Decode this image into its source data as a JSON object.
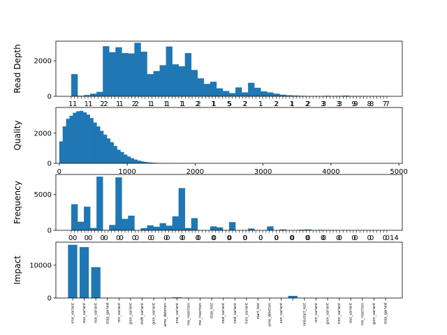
{
  "chart_data": [
    {
      "type": "bar",
      "ylabel": "Read Depth",
      "ylim": [
        0,
        3100
      ],
      "yticks": [
        "0",
        "2000"
      ],
      "ytick_values": [
        0,
        2000
      ],
      "x_tick_labels_overlapping": "1 1 2 1 2 1 1 1 2 1 5 2 1 2 1 2 3 3 9 8 7",
      "values": [
        1250,
        30,
        70,
        150,
        250,
        2820,
        2480,
        2760,
        2430,
        2410,
        3010,
        2510,
        1250,
        1420,
        1750,
        2800,
        1800,
        1690,
        2430,
        1480,
        1010,
        700,
        820,
        450,
        300,
        180,
        500,
        220,
        760,
        480,
        280,
        220,
        150,
        90,
        60,
        45,
        30,
        20,
        15,
        10,
        30,
        20,
        25,
        40,
        20,
        20,
        15,
        10,
        10,
        10
      ]
    },
    {
      "type": "bar",
      "ylabel": "Quality",
      "ylim": [
        0,
        3700
      ],
      "xlim": [
        -50,
        5050
      ],
      "yticks": [
        "0",
        "2000"
      ],
      "ytick_values": [
        0,
        2000
      ],
      "xticks": [
        "0",
        "1000",
        "2000",
        "3000",
        "4000",
        "5000"
      ],
      "xtick_values": [
        0,
        1000,
        2000,
        3000,
        4000,
        5000
      ],
      "bin_start": 0,
      "bin_width": 50,
      "values": [
        1450,
        2450,
        2950,
        3150,
        3350,
        3450,
        3480,
        3380,
        3230,
        3000,
        2700,
        2450,
        2150,
        1900,
        1650,
        1400,
        1150,
        900,
        750,
        580,
        450,
        340,
        250,
        180,
        130,
        90,
        60,
        45,
        30,
        20,
        12,
        8,
        5,
        3,
        2,
        2
      ]
    },
    {
      "type": "bar",
      "ylabel": "Frequency",
      "ylim": [
        0,
        7800
      ],
      "yticks": [
        "0",
        "5000"
      ],
      "ytick_values": [
        0,
        5000
      ],
      "x_tick_labels_overlapping": "0 0 0 0 0 0 0 0 0 0 0 0 0 0 0 0 0 0 0 0 0",
      "x_tick_label_right": "14",
      "values": [
        3650,
        1200,
        3300,
        330,
        7500,
        50,
        750,
        7400,
        1600,
        2050,
        0,
        300,
        700,
        500,
        1000,
        650,
        1950,
        5900,
        320,
        1700,
        0,
        0,
        550,
        420,
        0,
        1150,
        0,
        0,
        250,
        0,
        0,
        550,
        0,
        120,
        0,
        0,
        90,
        120,
        0,
        60,
        40,
        30,
        20,
        15,
        10,
        10,
        8,
        5,
        5,
        4
      ]
    },
    {
      "type": "bar",
      "ylabel": "Impact",
      "ylim": [
        0,
        17000
      ],
      "yticks": [
        "0",
        "10000"
      ],
      "ytick_values": [
        0,
        10000
      ],
      "categories": [
        "ene_variant",
        "ous_variant",
        "nse_variant",
        "stop_gained",
        "ron_variant",
        "gion_variant",
        "shift_variant",
        "gion_variant",
        "ame_deletion",
        "ene_variant",
        "me_insertion",
        "me_insertion",
        "stop_lost",
        "ned_variant",
        "ned_variant",
        "tion_variant",
        "start_lost",
        "ame_deletion",
        "xon_variant",
        "",
        "ne&start_lost",
        "ron_variant",
        "gion_variant",
        "tron_variant",
        "ous_variant",
        "me_insertion",
        "gion_variant",
        "stop_gained"
      ],
      "values": [
        16200,
        15500,
        9400,
        50,
        50,
        40,
        40,
        30,
        40,
        200,
        30,
        20,
        20,
        20,
        15,
        10,
        10,
        10,
        10,
        650,
        10,
        10,
        10,
        10,
        10,
        10,
        10,
        10
      ]
    }
  ]
}
